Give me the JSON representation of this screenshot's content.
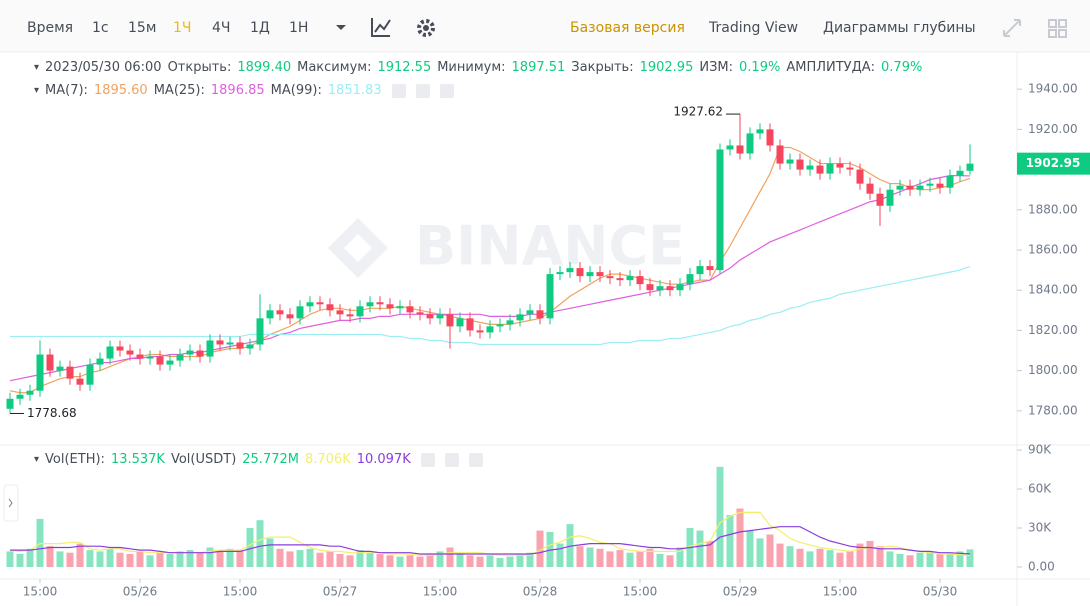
{
  "toolbar": {
    "intervals": [
      "Время",
      "1с",
      "15м",
      "1Ч",
      "4Ч",
      "1Д",
      "1Н"
    ],
    "active_interval": 3,
    "views": [
      "Базовая версия",
      "Trading View",
      "Диаграммы глубины"
    ],
    "active_view": 0
  },
  "info": {
    "date": "2023/05/30 06:00",
    "fields": [
      {
        "label": "Открыть:",
        "value": "1899.40"
      },
      {
        "label": "Максимум:",
        "value": "1912.55"
      },
      {
        "label": "Минимум:",
        "value": "1897.51"
      },
      {
        "label": "Закрыть:",
        "value": "1902.95"
      },
      {
        "label": "ИЗМ:",
        "value": "0.19%"
      },
      {
        "label": "АМПЛИТУДА:",
        "value": "0.79%"
      }
    ]
  },
  "vol_legend": [
    {
      "label": "Vol(ETH):",
      "value": "13.537K",
      "color": "#0ecb81"
    },
    {
      "label": "Vol(USDT)",
      "value": "25.772M",
      "color": "#0ecb81"
    }
  ],
  "watermark": "BINANCE",
  "chart_data": {
    "type": "candlestick",
    "categories": [
      null,
      null,
      null,
      "15:00",
      null,
      null,
      null,
      null,
      null,
      null,
      null,
      null,
      null,
      "05/26",
      null,
      null,
      null,
      null,
      null,
      null,
      null,
      null,
      null,
      "15:00",
      null,
      null,
      null,
      null,
      null,
      null,
      null,
      null,
      null,
      "05/27",
      null,
      null,
      null,
      null,
      null,
      null,
      null,
      null,
      null,
      "15:00",
      null,
      null,
      null,
      null,
      null,
      null,
      null,
      null,
      null,
      "05/28",
      null,
      null,
      null,
      null,
      null,
      null,
      null,
      null,
      null,
      "15:00",
      null,
      null,
      null,
      null,
      null,
      null,
      null,
      null,
      null,
      "05/29",
      null,
      null,
      null,
      null,
      null,
      null,
      null,
      null,
      null,
      "15:00",
      null,
      null,
      null,
      null,
      null,
      null,
      null,
      null,
      null,
      "05/30",
      null,
      null,
      null
    ],
    "open": [
      1781,
      1786,
      1788,
      1790,
      1808,
      1800,
      1802,
      1796,
      1793,
      1803,
      1806,
      1812,
      1810,
      1808,
      1806,
      1807,
      1803,
      1805,
      1808,
      1810,
      1807,
      1815,
      1813,
      1814,
      1811,
      1813,
      1826,
      1830,
      1828,
      1826,
      1832,
      1834,
      1833,
      1830,
      1828,
      1827,
      1832,
      1834,
      1833,
      1831,
      1832,
      1829,
      1828,
      1826,
      1828,
      1822,
      1826,
      1820,
      1819,
      1822,
      1823,
      1825,
      1828,
      1830,
      1826,
      1848,
      1849,
      1851,
      1847,
      1849,
      1847,
      1846,
      1845,
      1847,
      1843,
      1840,
      1842,
      1840,
      1843,
      1848,
      1852,
      1850,
      1910,
      1912,
      1908,
      1918,
      1920,
      1912,
      1903,
      1905,
      1900,
      1902,
      1898,
      1903,
      1901,
      1900,
      1893,
      1888,
      1882,
      1890,
      1892,
      1890,
      1892,
      1893,
      1891,
      1897,
      1899.4
    ],
    "high": [
      1789,
      1791,
      1793,
      1815,
      1811,
      1805,
      1805,
      1799,
      1806,
      1809,
      1815,
      1815,
      1813,
      1811,
      1810,
      1810,
      1808,
      1811,
      1813,
      1813,
      1818,
      1818,
      1817,
      1817,
      1816,
      1838,
      1833,
      1833,
      1831,
      1835,
      1837,
      1837,
      1836,
      1833,
      1831,
      1835,
      1837,
      1837,
      1836,
      1835,
      1835,
      1832,
      1831,
      1831,
      1831,
      1829,
      1829,
      1823,
      1825,
      1826,
      1828,
      1831,
      1833,
      1833,
      1851,
      1852,
      1854,
      1854,
      1852,
      1852,
      1850,
      1849,
      1850,
      1850,
      1846,
      1845,
      1845,
      1846,
      1851,
      1855,
      1855,
      1913,
      1915,
      1927.62,
      1921,
      1923,
      1923,
      1915,
      1908,
      1908,
      1905,
      1905,
      1906,
      1906,
      1904,
      1903,
      1896,
      1891,
      1893,
      1895,
      1895,
      1895,
      1896,
      1896,
      1900,
      1902,
      1912.55
    ],
    "low": [
      1778.68,
      1783,
      1785,
      1787,
      1797,
      1797,
      1793,
      1790,
      1790,
      1800,
      1803,
      1807,
      1805,
      1803,
      1803,
      1800,
      1800,
      1802,
      1805,
      1804,
      1804,
      1810,
      1810,
      1808,
      1808,
      1810,
      1823,
      1825,
      1823,
      1823,
      1829,
      1830,
      1827,
      1825,
      1824,
      1824,
      1829,
      1830,
      1828,
      1828,
      1826,
      1825,
      1823,
      1823,
      1811,
      1819,
      1817,
      1816,
      1816,
      1819,
      1820,
      1822,
      1825,
      1823,
      1823,
      1845,
      1846,
      1844,
      1844,
      1844,
      1843,
      1842,
      1842,
      1840,
      1837,
      1837,
      1837,
      1837,
      1840,
      1845,
      1847,
      1848,
      1907,
      1905,
      1905,
      1915,
      1909,
      1900,
      1900,
      1897,
      1897,
      1895,
      1895,
      1898,
      1897,
      1890,
      1885,
      1872,
      1879,
      1887,
      1887,
      1887,
      1889,
      1888,
      1888,
      1894,
      1897.51
    ],
    "close": [
      1786,
      1788,
      1790,
      1808,
      1800,
      1802,
      1796,
      1793,
      1803,
      1806,
      1812,
      1810,
      1808,
      1806,
      1807,
      1803,
      1805,
      1808,
      1810,
      1807,
      1815,
      1813,
      1814,
      1811,
      1813,
      1826,
      1830,
      1828,
      1826,
      1832,
      1834,
      1833,
      1830,
      1828,
      1827,
      1832,
      1834,
      1833,
      1831,
      1832,
      1829,
      1828,
      1826,
      1828,
      1822,
      1826,
      1820,
      1819,
      1822,
      1823,
      1825,
      1828,
      1830,
      1826,
      1848,
      1849,
      1851,
      1847,
      1849,
      1847,
      1846,
      1845,
      1847,
      1843,
      1840,
      1842,
      1840,
      1843,
      1848,
      1852,
      1850,
      1910,
      1912,
      1908,
      1918,
      1920,
      1912,
      1903,
      1905,
      1900,
      1902,
      1898,
      1903,
      1901,
      1900,
      1893,
      1888,
      1882,
      1890,
      1892,
      1890,
      1892,
      1893,
      1891,
      1897,
      1899.4,
      1902.95
    ],
    "volume": [
      12000,
      10000,
      14000,
      37000,
      16000,
      12000,
      11000,
      18000,
      13000,
      12000,
      14000,
      11000,
      10000,
      12000,
      9000,
      11000,
      10000,
      12000,
      13000,
      11000,
      15000,
      12000,
      14000,
      13000,
      30000,
      36000,
      22000,
      14000,
      12000,
      13000,
      14000,
      11000,
      12000,
      10000,
      9000,
      13000,
      11000,
      10000,
      9000,
      8000,
      9000,
      8000,
      10000,
      12000,
      15000,
      11000,
      9000,
      8000,
      9000,
      7000,
      8000,
      10000,
      11000,
      28000,
      27000,
      18000,
      33000,
      16000,
      15000,
      14000,
      12000,
      13000,
      11000,
      12000,
      14000,
      10000,
      9000,
      15000,
      30000,
      28000,
      20000,
      77000,
      40000,
      45000,
      28000,
      22000,
      25000,
      18000,
      16000,
      14000,
      12000,
      14000,
      13000,
      11000,
      12000,
      18000,
      20000,
      16000,
      12000,
      10000,
      9000,
      11000,
      12000,
      10000,
      11000,
      12000,
      13537
    ],
    "series": [
      {
        "name": "MA(7):",
        "legend_value": "1895.60",
        "color": "#f0a35e",
        "values": [
          1790,
          1789,
          1789,
          1792,
          1794,
          1796,
          1797,
          1797,
          1799,
          1800,
          1802,
          1804,
          1806,
          1807,
          1808,
          1808,
          1807,
          1807,
          1807,
          1807,
          1809,
          1810,
          1811,
          1811,
          1812,
          1815,
          1818,
          1820,
          1822,
          1825,
          1828,
          1830,
          1831,
          1831,
          1830,
          1830,
          1831,
          1831,
          1831,
          1832,
          1831,
          1830,
          1829,
          1828,
          1827,
          1826,
          1825,
          1824,
          1823,
          1823,
          1823,
          1824,
          1825,
          1826,
          1829,
          1833,
          1837,
          1840,
          1843,
          1846,
          1848,
          1848,
          1847,
          1846,
          1845,
          1844,
          1843,
          1843,
          1844,
          1845,
          1845,
          1854,
          1862,
          1871,
          1880,
          1889,
          1898,
          1911,
          1911,
          1909,
          1906,
          1903,
          1903,
          1903,
          1903,
          1901,
          1898,
          1895,
          1893,
          1893,
          1891,
          1890,
          1890,
          1891,
          1892,
          1894,
          1895.6
        ]
      },
      {
        "name": "MA(25):",
        "legend_value": "1896.85",
        "color": "#e05fe0",
        "values": [
          1795,
          1796,
          1797,
          1798,
          1799,
          1800,
          1801,
          1802,
          1803,
          1804,
          1804,
          1805,
          1806,
          1806,
          1807,
          1807,
          1808,
          1808,
          1809,
          1809,
          1810,
          1811,
          1812,
          1813,
          1814,
          1815,
          1816,
          1818,
          1819,
          1821,
          1822,
          1823,
          1824,
          1825,
          1825,
          1826,
          1826,
          1827,
          1827,
          1828,
          1828,
          1828,
          1828,
          1828,
          1828,
          1828,
          1828,
          1828,
          1827,
          1827,
          1827,
          1827,
          1828,
          1828,
          1829,
          1830,
          1831,
          1832,
          1833,
          1834,
          1835,
          1836,
          1837,
          1838,
          1839,
          1840,
          1841,
          1842,
          1843,
          1844,
          1845,
          1848,
          1851,
          1855,
          1858,
          1861,
          1864,
          1866,
          1868,
          1870,
          1872,
          1874,
          1876,
          1878,
          1880,
          1882,
          1884,
          1885,
          1887,
          1889,
          1891,
          1893,
          1895,
          1896,
          1897,
          1897,
          1896.85
        ]
      },
      {
        "name": "MA(99):",
        "legend_value": "1851.83",
        "color": "#9aeef4",
        "values": [
          1817,
          1817,
          1817,
          1817,
          1817,
          1817,
          1817,
          1817,
          1817,
          1817,
          1817,
          1817,
          1817,
          1817,
          1817,
          1817,
          1817,
          1817,
          1817,
          1817,
          1817,
          1817,
          1817,
          1817,
          1818,
          1818,
          1818,
          1818,
          1818,
          1818,
          1818,
          1818,
          1818,
          1818,
          1818,
          1818,
          1818,
          1818,
          1817,
          1817,
          1816,
          1816,
          1815,
          1815,
          1814,
          1814,
          1814,
          1813,
          1813,
          1813,
          1813,
          1813,
          1813,
          1813,
          1813,
          1813,
          1813,
          1813,
          1813,
          1813,
          1814,
          1814,
          1814,
          1815,
          1815,
          1815,
          1816,
          1816,
          1817,
          1818,
          1819,
          1820,
          1822,
          1823,
          1825,
          1826,
          1828,
          1829,
          1831,
          1832,
          1834,
          1835,
          1836,
          1838,
          1839,
          1840,
          1841,
          1842,
          1843,
          1844,
          1845,
          1846,
          1847,
          1848,
          1849,
          1850,
          1851.83
        ]
      }
    ],
    "volume_series": [
      {
        "legend_value": "8.706K",
        "color": "#f5ee6a",
        "values": [
          13000,
          12000,
          13000,
          18000,
          18000,
          18000,
          19000,
          19000,
          14000,
          13000,
          14000,
          14000,
          12000,
          12000,
          11000,
          11000,
          11000,
          11000,
          11000,
          11000,
          12000,
          13000,
          13000,
          13000,
          17000,
          21000,
          23000,
          23000,
          23000,
          19000,
          15000,
          13000,
          12000,
          12000,
          11000,
          11000,
          11000,
          11000,
          10000,
          10000,
          10000,
          9000,
          9000,
          10000,
          11000,
          11000,
          11000,
          11000,
          10000,
          9000,
          9000,
          9000,
          9000,
          13000,
          17000,
          19000,
          23000,
          24000,
          22000,
          19000,
          18000,
          14000,
          13000,
          12000,
          12000,
          12000,
          12000,
          12000,
          16000,
          18000,
          20000,
          34000,
          39000,
          42000,
          42000,
          42000,
          32000,
          28000,
          22000,
          19000,
          17000,
          15000,
          14000,
          13000,
          12000,
          14000,
          15000,
          15000,
          16000,
          15000,
          13000,
          12000,
          11000,
          10000,
          10000,
          9500,
          8706
        ]
      },
      {
        "legend_value": "10.097K",
        "color": "#8a3cde",
        "values": [
          13000,
          13000,
          13000,
          14000,
          15000,
          15000,
          15000,
          16000,
          16000,
          16000,
          15000,
          15000,
          14000,
          13000,
          13000,
          12000,
          11000,
          11000,
          11000,
          11000,
          11000,
          12000,
          12000,
          12000,
          14000,
          16000,
          17000,
          17000,
          17000,
          17000,
          17000,
          17000,
          16000,
          16000,
          14000,
          12000,
          12000,
          11000,
          11000,
          11000,
          11000,
          10000,
          10000,
          10000,
          10000,
          10000,
          10000,
          10000,
          10000,
          10000,
          10000,
          10000,
          10000,
          11000,
          13000,
          14000,
          16000,
          17000,
          18000,
          18000,
          18000,
          18000,
          17000,
          16000,
          15000,
          15000,
          14000,
          14000,
          15000,
          16000,
          17000,
          23000,
          25000,
          27000,
          28000,
          29000,
          30000,
          31000,
          31000,
          31000,
          27000,
          23000,
          20000,
          18000,
          16000,
          15000,
          15000,
          14000,
          14000,
          14000,
          13000,
          12000,
          12000,
          11000,
          11000,
          10500,
          10097
        ]
      }
    ],
    "up_color": "#0ecb81",
    "down_color": "#f6465d",
    "ylim": [
      1763,
      1957
    ],
    "yticks": [
      {
        "value": 1780,
        "label": "1780.00"
      },
      {
        "value": 1800,
        "label": "1800.00"
      },
      {
        "value": 1820,
        "label": "1820.00"
      },
      {
        "value": 1840,
        "label": "1840.00"
      },
      {
        "value": 1860,
        "label": "1860.00"
      },
      {
        "value": 1880,
        "label": "1880.00"
      },
      {
        "value": 1900,
        "label": "1900.00"
      },
      {
        "value": 1920,
        "label": "1920.00"
      },
      {
        "value": 1940,
        "label": "1940.00"
      }
    ],
    "y2lim": [
      -10000,
      92300
    ],
    "y2ticks": [
      {
        "value": 0,
        "label": "0.00"
      },
      {
        "value": 30000,
        "label": "30K"
      },
      {
        "value": 60000,
        "label": "60K"
      },
      {
        "value": 90000,
        "label": "90K"
      }
    ],
    "grid": false
  }
}
